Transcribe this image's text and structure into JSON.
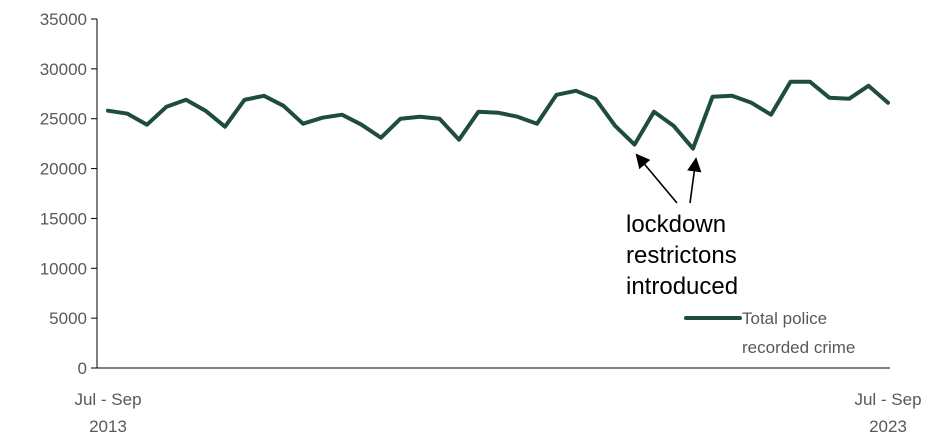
{
  "chart_data": {
    "type": "line",
    "title": "",
    "xlabel": "",
    "ylabel": "",
    "ylim": [
      0,
      35000
    ],
    "yticks": [
      0,
      5000,
      10000,
      15000,
      20000,
      25000,
      30000,
      35000
    ],
    "grid": false,
    "x_tick_labels": [
      {
        "line1": "Jul - Sep",
        "line2": "2013",
        "index": 0
      },
      {
        "line1": "Jul - Sep",
        "line2": "2023",
        "index": 40
      }
    ],
    "legend": {
      "placement": "bottom-right",
      "line1": "Total police",
      "line2": "recorded crime"
    },
    "series": [
      {
        "name": "Total police recorded crime",
        "color": "#1e4d40",
        "values": [
          25800,
          25500,
          24400,
          26200,
          26900,
          25800,
          24200,
          26900,
          27300,
          26300,
          24500,
          25100,
          25400,
          24400,
          23100,
          25000,
          25200,
          25000,
          22900,
          25700,
          25600,
          25200,
          24500,
          27400,
          27800,
          27000,
          24300,
          22400,
          25700,
          24300,
          22000,
          27200,
          27300,
          26600,
          25400,
          28700,
          28700,
          27100,
          27000,
          28300,
          26600
        ]
      }
    ],
    "annotations": [
      {
        "lines": [
          "lockdown",
          "restrictons",
          "introduced"
        ],
        "arrow_targets": [
          27,
          30
        ]
      }
    ]
  }
}
